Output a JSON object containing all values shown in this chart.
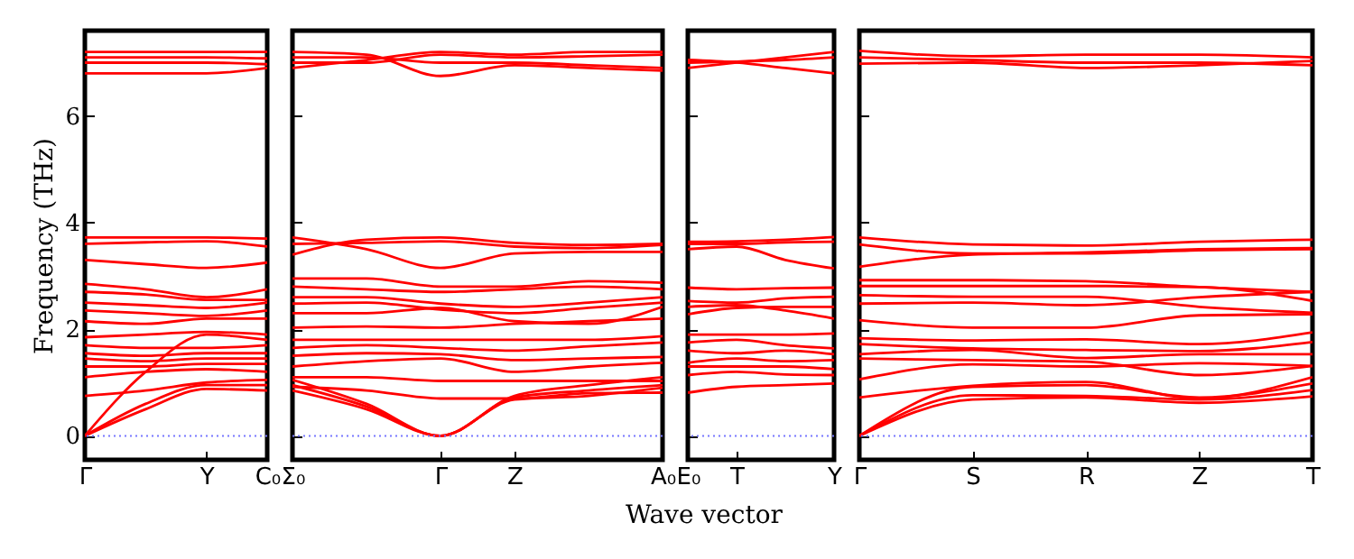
{
  "chart_data": [
    {
      "type": "line",
      "ylabel": "Frequency (THz)",
      "categories": [
        "Γ",
        null,
        "Y",
        "C₀"
      ],
      "ylim": [
        -0.45,
        7.6
      ],
      "yticks": [
        0,
        2,
        4,
        6
      ],
      "ref_lines": [
        {
          "axis": "y",
          "value": 0,
          "line_style": "dotted",
          "color": "#7777ff"
        }
      ],
      "series": [
        {
          "color": "#ff0000",
          "values": [
            7.2,
            7.2,
            7.2,
            7.2
          ]
        },
        {
          "color": "#ff0000",
          "values": [
            7.1,
            7.1,
            7.1,
            7.08
          ]
        },
        {
          "color": "#ff0000",
          "values": [
            7.0,
            7.0,
            7.0,
            6.97
          ]
        },
        {
          "color": "#ff0000",
          "values": [
            6.8,
            6.8,
            6.8,
            6.9
          ]
        },
        {
          "color": "#ff0000",
          "values": [
            3.72,
            3.72,
            3.72,
            3.7
          ]
        },
        {
          "color": "#ff0000",
          "values": [
            3.6,
            3.63,
            3.65,
            3.55
          ]
        },
        {
          "color": "#ff0000",
          "values": [
            3.3,
            3.22,
            3.15,
            3.25
          ]
        },
        {
          "color": "#ff0000",
          "values": [
            2.85,
            2.75,
            2.6,
            2.75
          ]
        },
        {
          "color": "#ff0000",
          "values": [
            2.7,
            2.65,
            2.55,
            2.55
          ]
        },
        {
          "color": "#ff0000",
          "values": [
            2.5,
            2.45,
            2.4,
            2.5
          ]
        },
        {
          "color": "#ff0000",
          "values": [
            2.35,
            2.3,
            2.25,
            2.35
          ]
        },
        {
          "color": "#ff0000",
          "values": [
            2.15,
            2.1,
            2.2,
            2.2
          ]
        },
        {
          "color": "#ff0000",
          "values": [
            1.85,
            1.9,
            1.95,
            1.9
          ]
        },
        {
          "color": "#ff0000",
          "values": [
            1.7,
            1.65,
            1.65,
            1.7
          ]
        },
        {
          "color": "#ff0000",
          "values": [
            1.55,
            1.5,
            1.55,
            1.55
          ]
        },
        {
          "color": "#ff0000",
          "values": [
            1.45,
            1.4,
            1.45,
            1.45
          ]
        },
        {
          "color": "#ff0000",
          "values": [
            1.3,
            1.3,
            1.35,
            1.35
          ]
        },
        {
          "color": "#ff0000",
          "values": [
            1.1,
            1.2,
            1.25,
            1.2
          ]
        },
        {
          "color": "#ff0000",
          "values": [
            0.75,
            0.85,
            1.0,
            1.05
          ]
        },
        {
          "color": "#ff0000",
          "values": [
            0,
            1.2,
            1.9,
            1.8
          ]
        },
        {
          "color": "#ff0000",
          "values": [
            0,
            0.6,
            0.95,
            0.95
          ]
        },
        {
          "color": "#ff0000",
          "values": [
            0,
            0.5,
            0.88,
            0.85
          ]
        }
      ]
    },
    {
      "type": "line",
      "xlabel": "Wave vector",
      "tick_labels": "x",
      "categories": [
        "Σ₀",
        null,
        "Γ",
        "Z",
        null,
        "A₀"
      ],
      "ylim": [
        -0.45,
        7.6
      ],
      "yticks": [
        0,
        2,
        4,
        6
      ],
      "ref_lines": [
        {
          "axis": "y",
          "value": 0,
          "line_style": "dotted",
          "color": "#7777ff"
        }
      ],
      "series": [
        {
          "color": "#ff0000",
          "values": [
            6.9,
            7.05,
            7.2,
            7.15,
            7.2,
            7.2
          ]
        },
        {
          "color": "#ff0000",
          "values": [
            7.0,
            7.0,
            7.15,
            7.1,
            7.12,
            7.15
          ]
        },
        {
          "color": "#ff0000",
          "values": [
            7.1,
            7.1,
            7.0,
            7.0,
            6.95,
            6.9
          ]
        },
        {
          "color": "#ff0000",
          "values": [
            7.2,
            7.15,
            6.75,
            6.95,
            6.9,
            6.85
          ]
        },
        {
          "color": "#ff0000",
          "values": [
            3.4,
            3.68,
            3.72,
            3.62,
            3.58,
            3.6
          ]
        },
        {
          "color": "#ff0000",
          "values": [
            3.72,
            3.5,
            3.15,
            3.42,
            3.45,
            3.45
          ]
        },
        {
          "color": "#ff0000",
          "values": [
            3.6,
            3.62,
            3.65,
            3.55,
            3.52,
            3.58
          ]
        },
        {
          "color": "#ff0000",
          "values": [
            2.95,
            2.95,
            2.8,
            2.8,
            2.9,
            2.87
          ]
        },
        {
          "color": "#ff0000",
          "values": [
            2.8,
            2.75,
            2.7,
            2.75,
            2.8,
            2.75
          ]
        },
        {
          "color": "#ff0000",
          "values": [
            2.6,
            2.6,
            2.48,
            2.42,
            2.5,
            2.6
          ]
        },
        {
          "color": "#ff0000",
          "values": [
            2.48,
            2.5,
            2.37,
            2.3,
            2.4,
            2.5
          ]
        },
        {
          "color": "#ff0000",
          "values": [
            2.3,
            2.3,
            2.4,
            2.15,
            2.1,
            2.42
          ]
        },
        {
          "color": "#ff0000",
          "values": [
            2.03,
            2.05,
            2.03,
            2.1,
            2.15,
            2.2
          ]
        },
        {
          "color": "#ff0000",
          "values": [
            1.8,
            1.8,
            1.8,
            1.8,
            1.8,
            1.87
          ]
        },
        {
          "color": "#ff0000",
          "values": [
            1.65,
            1.7,
            1.65,
            1.6,
            1.68,
            1.75
          ]
        },
        {
          "color": "#ff0000",
          "values": [
            1.5,
            1.55,
            1.53,
            1.42,
            1.45,
            1.48
          ]
        },
        {
          "color": "#ff0000",
          "values": [
            1.3,
            1.4,
            1.45,
            1.2,
            1.3,
            1.37
          ]
        },
        {
          "color": "#ff0000",
          "values": [
            1.1,
            1.1,
            1.03,
            1.03,
            1.03,
            1.03
          ]
        },
        {
          "color": "#ff0000",
          "values": [
            0.92,
            0.85,
            0.7,
            0.7,
            0.8,
            0.81
          ]
        },
        {
          "color": "#ff0000",
          "values": [
            0.95,
            0.55,
            0,
            0.75,
            0.95,
            1.1
          ]
        },
        {
          "color": "#ff0000",
          "values": [
            0.85,
            0.5,
            0,
            0.72,
            0.85,
            0.95
          ]
        },
        {
          "color": "#ff0000",
          "values": [
            1.05,
            0.6,
            0,
            0.68,
            0.75,
            0.9
          ]
        }
      ]
    },
    {
      "type": "line",
      "tick_labels": "x",
      "categories": [
        "E₀",
        "T",
        null,
        "Y"
      ],
      "ylim": [
        -0.45,
        7.6
      ],
      "yticks": [
        0,
        2,
        4,
        6
      ],
      "ref_lines": [
        {
          "axis": "y",
          "value": 0,
          "line_style": "dotted",
          "color": "#7777ff"
        }
      ],
      "series": [
        {
          "color": "#ff0000",
          "values": [
            6.9,
            7.0,
            7.1,
            7.2
          ]
        },
        {
          "color": "#ff0000",
          "values": [
            7.05,
            7.0,
            6.9,
            6.8
          ]
        },
        {
          "color": "#ff0000",
          "values": [
            7.0,
            7.02,
            7.05,
            7.1
          ]
        },
        {
          "color": "#ff0000",
          "values": [
            3.64,
            3.65,
            3.68,
            3.73
          ]
        },
        {
          "color": "#ff0000",
          "values": [
            3.5,
            3.55,
            3.3,
            3.14
          ]
        },
        {
          "color": "#ff0000",
          "values": [
            3.6,
            3.6,
            3.63,
            3.64
          ]
        },
        {
          "color": "#ff0000",
          "values": [
            2.78,
            2.75,
            2.77,
            2.78
          ]
        },
        {
          "color": "#ff0000",
          "values": [
            2.53,
            2.5,
            2.58,
            2.61
          ]
        },
        {
          "color": "#ff0000",
          "values": [
            2.42,
            2.45,
            2.35,
            2.2
          ]
        },
        {
          "color": "#ff0000",
          "values": [
            2.28,
            2.4,
            2.42,
            2.42
          ]
        },
        {
          "color": "#ff0000",
          "values": [
            1.9,
            1.9,
            1.9,
            1.92
          ]
        },
        {
          "color": "#ff0000",
          "values": [
            1.75,
            1.8,
            1.7,
            1.64
          ]
        },
        {
          "color": "#ff0000",
          "values": [
            1.6,
            1.55,
            1.6,
            1.53
          ]
        },
        {
          "color": "#ff0000",
          "values": [
            1.37,
            1.45,
            1.4,
            1.42
          ]
        },
        {
          "color": "#ff0000",
          "values": [
            1.3,
            1.3,
            1.3,
            1.25
          ]
        },
        {
          "color": "#ff0000",
          "values": [
            1.14,
            1.2,
            1.15,
            1.14
          ]
        },
        {
          "color": "#ff0000",
          "values": [
            0.81,
            0.92,
            0.95,
            0.98
          ]
        }
      ]
    },
    {
      "type": "line",
      "tick_labels": "x",
      "categories": [
        "Γ",
        "S",
        "R",
        "Z",
        "T"
      ],
      "ylim": [
        -0.45,
        7.6
      ],
      "yticks": [
        0,
        2,
        4,
        6
      ],
      "ref_lines": [
        {
          "axis": "y",
          "value": 0,
          "line_style": "dotted",
          "color": "#7777ff"
        }
      ],
      "series": [
        {
          "color": "#ff0000",
          "values": [
            7.22,
            7.12,
            7.15,
            7.15,
            7.1
          ]
        },
        {
          "color": "#ff0000",
          "values": [
            7.1,
            7.05,
            7.0,
            7.0,
            6.95
          ]
        },
        {
          "color": "#ff0000",
          "values": [
            6.98,
            7.0,
            6.9,
            6.95,
            7.03
          ]
        },
        {
          "color": "#ff0000",
          "values": [
            3.72,
            3.59,
            3.57,
            3.64,
            3.68
          ]
        },
        {
          "color": "#ff0000",
          "values": [
            3.59,
            3.42,
            3.42,
            3.48,
            3.5
          ]
        },
        {
          "color": "#ff0000",
          "values": [
            3.17,
            3.4,
            3.44,
            3.5,
            3.52
          ]
        },
        {
          "color": "#ff0000",
          "values": [
            2.92,
            2.92,
            2.9,
            2.79,
            2.7
          ]
        },
        {
          "color": "#ff0000",
          "values": [
            2.81,
            2.81,
            2.81,
            2.79,
            2.53
          ]
        },
        {
          "color": "#ff0000",
          "values": [
            2.64,
            2.61,
            2.61,
            2.42,
            2.31
          ]
        },
        {
          "color": "#ff0000",
          "values": [
            2.48,
            2.5,
            2.45,
            2.6,
            2.7
          ]
        },
        {
          "color": "#ff0000",
          "values": [
            2.17,
            2.03,
            2.03,
            2.26,
            2.28
          ]
        },
        {
          "color": "#ff0000",
          "values": [
            1.83,
            1.79,
            1.81,
            1.72,
            1.94
          ]
        },
        {
          "color": "#ff0000",
          "values": [
            1.72,
            1.64,
            1.61,
            1.59,
            1.76
          ]
        },
        {
          "color": "#ff0000",
          "values": [
            1.53,
            1.61,
            1.46,
            1.53,
            1.53
          ]
        },
        {
          "color": "#ff0000",
          "values": [
            1.45,
            1.42,
            1.39,
            1.14,
            1.31
          ]
        },
        {
          "color": "#ff0000",
          "values": [
            1.06,
            1.34,
            1.3,
            1.36,
            1.31
          ]
        },
        {
          "color": "#ff0000",
          "values": [
            0.72,
            0.94,
            1.01,
            0.7,
            1.1
          ]
        },
        {
          "color": "#ff0000",
          "values": [
            0,
            0.92,
            0.95,
            0.72,
            0.98
          ]
        },
        {
          "color": "#ff0000",
          "values": [
            0,
            0.76,
            0.75,
            0.68,
            0.86
          ]
        },
        {
          "color": "#ff0000",
          "values": [
            0,
            0.68,
            0.72,
            0.62,
            0.74
          ]
        }
      ]
    }
  ]
}
